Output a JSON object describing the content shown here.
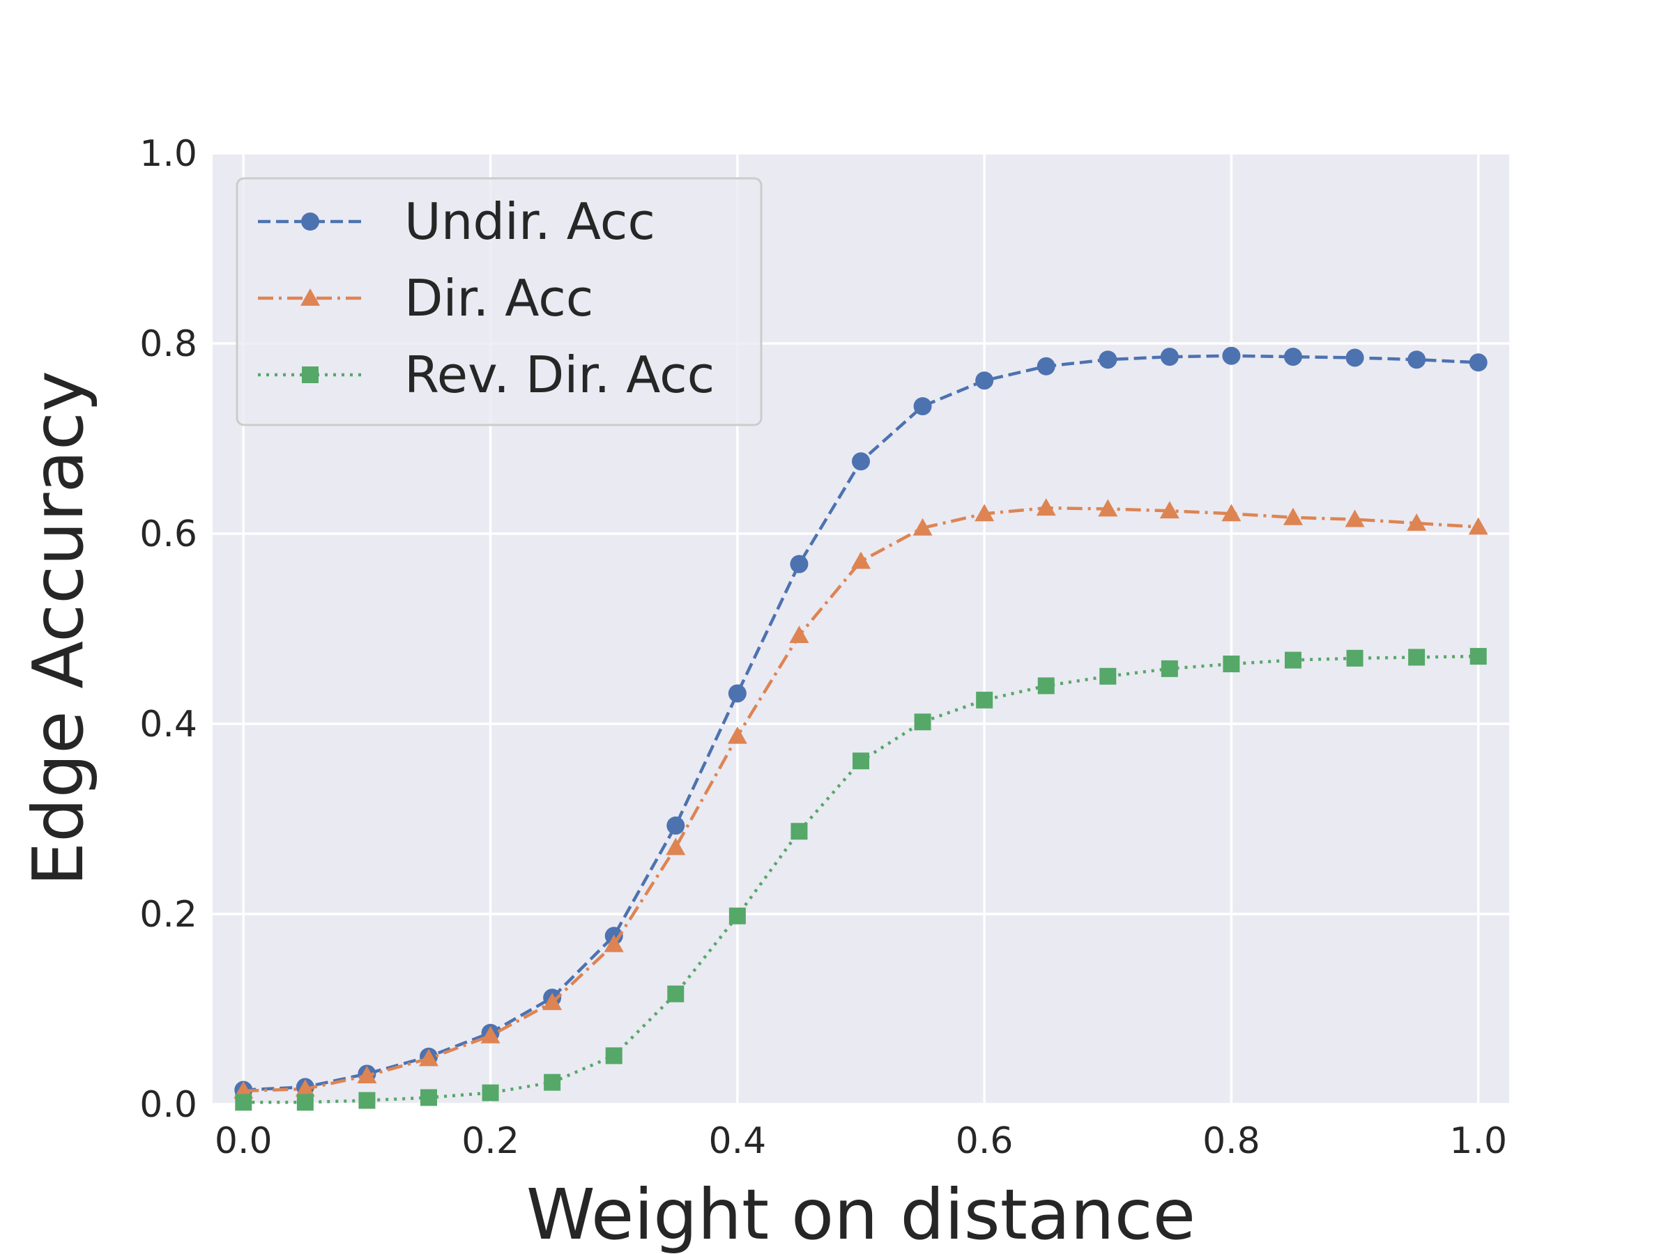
{
  "chart_data": {
    "type": "line",
    "title": "",
    "xlabel": "Weight on distance",
    "ylabel": "Edge Accuracy",
    "xlim": [
      -0.025,
      1.025
    ],
    "ylim": [
      0.0,
      1.0
    ],
    "grid": true,
    "legend_position": "top-left",
    "xticks": [
      0.0,
      0.2,
      0.4,
      0.6,
      0.8,
      1.0
    ],
    "xtick_labels": [
      "0.0",
      "0.2",
      "0.4",
      "0.6",
      "0.8",
      "1.0"
    ],
    "yticks": [
      0.0,
      0.2,
      0.4,
      0.6,
      0.8,
      1.0
    ],
    "ytick_labels": [
      "0.0",
      "0.2",
      "0.4",
      "0.6",
      "0.8",
      "1.0"
    ],
    "x": [
      0.0,
      0.05,
      0.1,
      0.15,
      0.2,
      0.25,
      0.3,
      0.35,
      0.4,
      0.45,
      0.5,
      0.55,
      0.6,
      0.65,
      0.7,
      0.75,
      0.8,
      0.85,
      0.9,
      0.95,
      1.0
    ],
    "series": [
      {
        "name": "Undir. Acc",
        "color": "#4c72b0",
        "marker": "circle",
        "linestyle": "dashed",
        "values": [
          0.015,
          0.018,
          0.032,
          0.05,
          0.075,
          0.112,
          0.177,
          0.293,
          0.432,
          0.568,
          0.676,
          0.734,
          0.761,
          0.776,
          0.783,
          0.786,
          0.787,
          0.786,
          0.785,
          0.783,
          0.78
        ]
      },
      {
        "name": "Dir. Acc",
        "color": "#dd8452",
        "marker": "triangle",
        "linestyle": "dashdot",
        "values": [
          0.014,
          0.016,
          0.03,
          0.048,
          0.072,
          0.107,
          0.168,
          0.27,
          0.387,
          0.493,
          0.571,
          0.606,
          0.621,
          0.627,
          0.626,
          0.624,
          0.621,
          0.617,
          0.615,
          0.611,
          0.607
        ]
      },
      {
        "name": "Rev. Dir. Acc",
        "color": "#55a868",
        "marker": "square",
        "linestyle": "dotted",
        "values": [
          0.002,
          0.002,
          0.004,
          0.007,
          0.012,
          0.023,
          0.051,
          0.116,
          0.198,
          0.287,
          0.361,
          0.402,
          0.425,
          0.44,
          0.45,
          0.458,
          0.463,
          0.467,
          0.469,
          0.47,
          0.471
        ]
      }
    ]
  }
}
